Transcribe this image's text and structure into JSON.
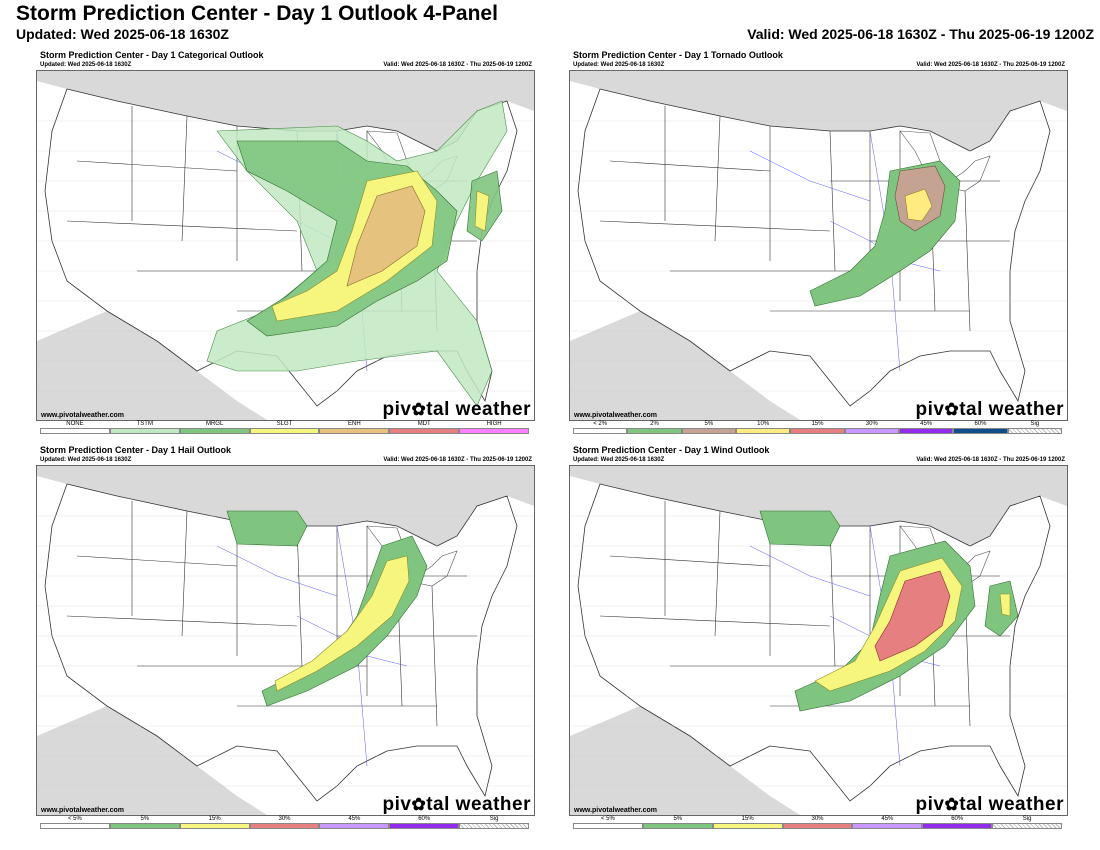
{
  "header": {
    "title": "Storm Prediction Center - Day 1 Outlook 4-Panel",
    "updated": "Updated: Wed 2025-06-18 1630Z",
    "valid": "Valid: Wed 2025-06-18 1630Z - Thu 2025-06-19 1200Z"
  },
  "panel_common": {
    "updated": "Updated: Wed 2025-06-18 1630Z",
    "valid": "Valid: Wed 2025-06-18 1630Z - Thu 2025-06-19 1200Z",
    "credit": "www.pivotalweather.com",
    "logo_left": "piv",
    "logo_right": "tal weather"
  },
  "panels": [
    {
      "title": "Storm Prediction Center - Day 1 Categorical Outlook",
      "legend": [
        {
          "label": "NONE",
          "color": "#ffffff"
        },
        {
          "label": "TSTM",
          "color": "#c1e9c1"
        },
        {
          "label": "MRGL",
          "color": "#7fc57f"
        },
        {
          "label": "SLGT",
          "color": "#f6f67f"
        },
        {
          "label": "ENH",
          "color": "#e6c27f"
        },
        {
          "label": "MDT",
          "color": "#e67f7f"
        },
        {
          "label": "HIGH",
          "color": "#ff7fff"
        }
      ]
    },
    {
      "title": "Storm Prediction Center - Day 1 Tornado Outlook",
      "legend": [
        {
          "label": "< 2%",
          "color": "#ffffff"
        },
        {
          "label": "2%",
          "color": "#7fc57f"
        },
        {
          "label": "5%",
          "color": "#c5a393"
        },
        {
          "label": "10%",
          "color": "#ffeb80"
        },
        {
          "label": "15%",
          "color": "#e67f7f"
        },
        {
          "label": "30%",
          "color": "#c897ff"
        },
        {
          "label": "45%",
          "color": "#912cee"
        },
        {
          "label": "60%",
          "color": "#104e8b"
        },
        {
          "label": "Sig",
          "color": "hatch"
        }
      ]
    },
    {
      "title": "Storm Prediction Center - Day 1 Hail Outlook",
      "legend": [
        {
          "label": "< 5%",
          "color": "#ffffff"
        },
        {
          "label": "5%",
          "color": "#7fc57f"
        },
        {
          "label": "15%",
          "color": "#f6f67f"
        },
        {
          "label": "30%",
          "color": "#e67f7f"
        },
        {
          "label": "45%",
          "color": "#c897ff"
        },
        {
          "label": "60%",
          "color": "#912cee"
        },
        {
          "label": "Sig",
          "color": "hatch"
        }
      ]
    },
    {
      "title": "Storm Prediction Center - Day 1 Wind Outlook",
      "legend": [
        {
          "label": "< 5%",
          "color": "#ffffff"
        },
        {
          "label": "5%",
          "color": "#7fc57f"
        },
        {
          "label": "15%",
          "color": "#f6f67f"
        },
        {
          "label": "30%",
          "color": "#e67f7f"
        },
        {
          "label": "45%",
          "color": "#c897ff"
        },
        {
          "label": "60%",
          "color": "#912cee"
        },
        {
          "label": "Sig",
          "color": "hatch"
        }
      ]
    }
  ],
  "colors": {
    "land": "#ffffff",
    "foreign_land": "#d9d9d9",
    "water": "#ffffff",
    "state_lines": "#333333",
    "county_lines": "#bbbbbb",
    "rivers": "#5a5aff"
  }
}
